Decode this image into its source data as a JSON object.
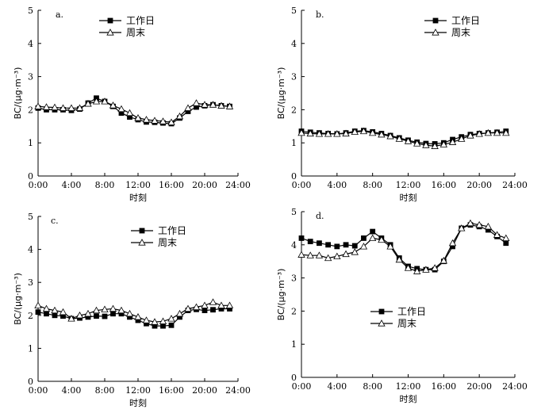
{
  "chart_data": [
    {
      "type": "line",
      "panel_label": "a.",
      "xlabel": "时刻",
      "ylabel": "BC/(μg·m⁻³)",
      "ylim": [
        0,
        5
      ],
      "yticks": [
        "0",
        "1",
        "2",
        "3",
        "4",
        "5"
      ],
      "xticks": [
        "0:00",
        "4:00",
        "8:00",
        "12:00",
        "16:00",
        "20:00",
        "24:00"
      ],
      "x_hours": [
        0,
        1,
        2,
        3,
        4,
        5,
        6,
        7,
        8,
        9,
        10,
        11,
        12,
        13,
        14,
        15,
        16,
        17,
        18,
        19,
        20,
        21,
        22,
        23
      ],
      "legend_position": "top-center",
      "series": [
        {
          "name": "工作日",
          "marker": "filled-square",
          "values": [
            2.05,
            2.0,
            2.0,
            2.0,
            1.98,
            2.02,
            2.2,
            2.35,
            2.25,
            2.1,
            1.9,
            1.78,
            1.7,
            1.63,
            1.62,
            1.6,
            1.58,
            1.75,
            1.95,
            2.08,
            2.12,
            2.15,
            2.12,
            2.1
          ]
        },
        {
          "name": "周末",
          "marker": "open-triangle",
          "values": [
            2.1,
            2.08,
            2.07,
            2.05,
            2.05,
            2.05,
            2.18,
            2.25,
            2.25,
            2.13,
            2.02,
            1.9,
            1.75,
            1.7,
            1.67,
            1.65,
            1.62,
            1.8,
            2.05,
            2.2,
            2.15,
            2.15,
            2.12,
            2.1
          ]
        }
      ]
    },
    {
      "type": "line",
      "panel_label": "b.",
      "xlabel": "时刻",
      "ylabel": "BC/(μg·m⁻³)",
      "ylim": [
        0,
        5
      ],
      "yticks": [
        "0",
        "1",
        "2",
        "3",
        "4",
        "5"
      ],
      "xticks": [
        "0:00",
        "4:00",
        "8:00",
        "12:00",
        "16:00",
        "20:00",
        "24:00"
      ],
      "x_hours": [
        0,
        1,
        2,
        3,
        4,
        5,
        6,
        7,
        8,
        9,
        10,
        11,
        12,
        13,
        14,
        15,
        16,
        17,
        18,
        19,
        20,
        21,
        22,
        23
      ],
      "legend_position": "top-center",
      "series": [
        {
          "name": "工作日",
          "marker": "filled-square",
          "values": [
            1.35,
            1.32,
            1.3,
            1.28,
            1.27,
            1.3,
            1.35,
            1.37,
            1.33,
            1.28,
            1.22,
            1.15,
            1.08,
            1.02,
            0.98,
            0.97,
            1.0,
            1.1,
            1.18,
            1.25,
            1.28,
            1.3,
            1.32,
            1.35
          ]
        },
        {
          "name": "周末",
          "marker": "open-triangle",
          "values": [
            1.3,
            1.28,
            1.27,
            1.27,
            1.27,
            1.28,
            1.33,
            1.35,
            1.3,
            1.25,
            1.2,
            1.12,
            1.05,
            0.98,
            0.93,
            0.9,
            0.95,
            1.02,
            1.12,
            1.22,
            1.27,
            1.3,
            1.3,
            1.3
          ]
        }
      ]
    },
    {
      "type": "line",
      "panel_label": "c.",
      "xlabel": "时刻",
      "ylabel": "BC/(μg·m⁻³)",
      "ylim": [
        0,
        5
      ],
      "yticks": [
        "0",
        "1",
        "2",
        "3",
        "4",
        "5"
      ],
      "xticks": [
        "0:00",
        "4:00",
        "8:00",
        "12:00",
        "16:00",
        "20:00",
        "24:00"
      ],
      "x_hours": [
        0,
        1,
        2,
        3,
        4,
        5,
        6,
        7,
        8,
        9,
        10,
        11,
        12,
        13,
        14,
        15,
        16,
        17,
        18,
        19,
        20,
        21,
        22,
        23
      ],
      "legend_position": "top-right",
      "series": [
        {
          "name": "工作日",
          "marker": "filled-square",
          "values": [
            2.1,
            2.05,
            2.0,
            1.98,
            1.9,
            1.92,
            1.95,
            1.98,
            1.97,
            2.05,
            2.05,
            1.95,
            1.85,
            1.75,
            1.68,
            1.68,
            1.7,
            1.95,
            2.15,
            2.18,
            2.15,
            2.17,
            2.2,
            2.2
          ]
        },
        {
          "name": "周末",
          "marker": "open-triangle",
          "values": [
            2.3,
            2.2,
            2.15,
            2.1,
            1.9,
            2.0,
            2.05,
            2.15,
            2.18,
            2.2,
            2.15,
            2.05,
            1.95,
            1.85,
            1.8,
            1.82,
            1.9,
            2.05,
            2.2,
            2.25,
            2.3,
            2.4,
            2.3,
            2.3
          ]
        }
      ]
    },
    {
      "type": "line",
      "panel_label": "d.",
      "xlabel": "时刻",
      "ylabel": "BC/(μg·m⁻³)",
      "ylim": [
        0,
        5
      ],
      "yticks": [
        "0",
        "1",
        "2",
        "3",
        "4",
        "5"
      ],
      "xticks": [
        "0:00",
        "4:00",
        "8:00",
        "12:00",
        "16:00",
        "20:00",
        "24:00"
      ],
      "x_hours": [
        0,
        1,
        2,
        3,
        4,
        5,
        6,
        7,
        8,
        9,
        10,
        11,
        12,
        13,
        14,
        15,
        16,
        17,
        18,
        19,
        20,
        21,
        22,
        23
      ],
      "legend_position": "bottom-center",
      "series": [
        {
          "name": "工作日",
          "marker": "filled-square",
          "values": [
            4.2,
            4.1,
            4.05,
            4.0,
            3.95,
            4.0,
            3.97,
            4.2,
            4.4,
            4.2,
            4.0,
            3.6,
            3.35,
            3.28,
            3.25,
            3.25,
            3.5,
            3.95,
            4.5,
            4.6,
            4.55,
            4.45,
            4.25,
            4.05
          ]
        },
        {
          "name": "周末",
          "marker": "open-triangle",
          "values": [
            3.7,
            3.68,
            3.68,
            3.6,
            3.65,
            3.72,
            3.78,
            3.95,
            4.2,
            4.15,
            3.95,
            3.55,
            3.3,
            3.2,
            3.25,
            3.3,
            3.52,
            4.05,
            4.5,
            4.65,
            4.6,
            4.55,
            4.3,
            4.2
          ]
        }
      ]
    }
  ]
}
